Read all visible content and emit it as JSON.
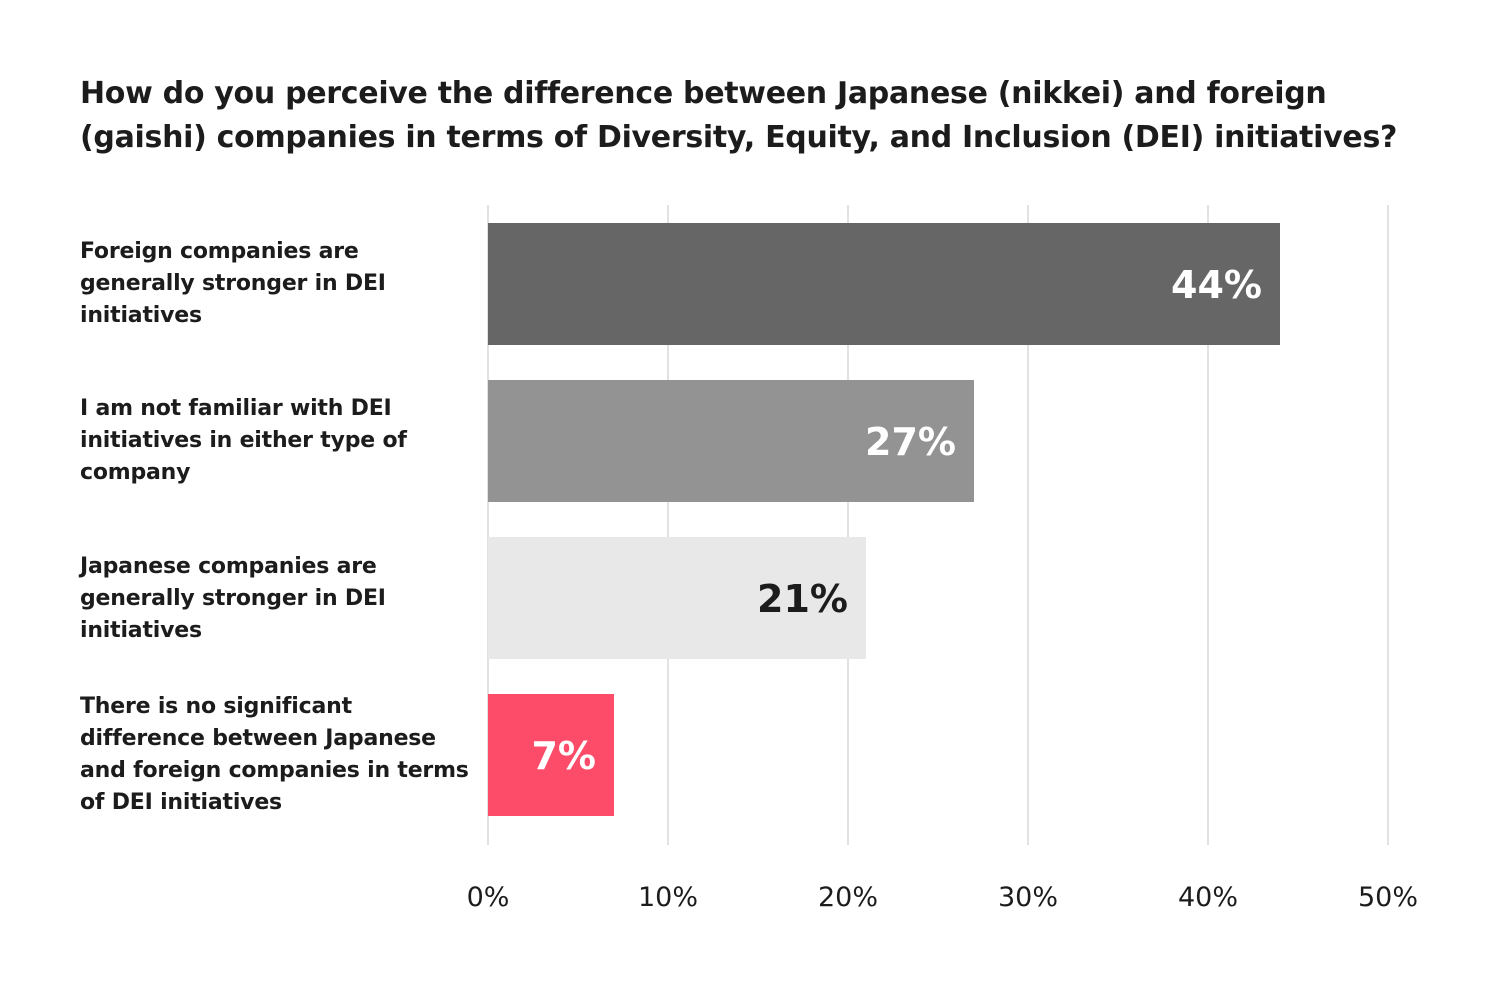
{
  "title": "How do you perceive the difference between Japanese (nikkei) and foreign (gaishi) companies in terms of Diversity, Equity, and Inclusion (DEI) initiatives?",
  "chart_data": {
    "type": "bar",
    "orientation": "horizontal",
    "title": "How do you perceive the difference between Japanese (nikkei) and foreign (gaishi) companies in terms of Diversity, Equity, and Inclusion (DEI) initiatives?",
    "categories": [
      "Foreign companies are generally stronger in DEI initiatives",
      "I am not familiar with DEI initiatives in either type of company",
      "Japanese companies are generally stronger in DEI initiatives",
      "There is no significant difference between Japanese and foreign companies in terms of DEI initiatives"
    ],
    "values": [
      44,
      27,
      21,
      7
    ],
    "value_labels": [
      "44%",
      "27%",
      "21%",
      "7%"
    ],
    "bar_colors": [
      "#666666",
      "#939393",
      "#e8e8e8",
      "#fc4c69"
    ],
    "label_colors": [
      "#ffffff",
      "#ffffff",
      "#1c1c1c",
      "#ffffff"
    ],
    "xlim": [
      0,
      50
    ],
    "xticks": [
      0,
      10,
      20,
      30,
      40,
      50
    ],
    "xtick_labels": [
      "0%",
      "10%",
      "20%",
      "30%",
      "40%",
      "50%"
    ],
    "xlabel": "",
    "ylabel": "",
    "grid": true,
    "gridline_color": "#d9d9d9"
  }
}
